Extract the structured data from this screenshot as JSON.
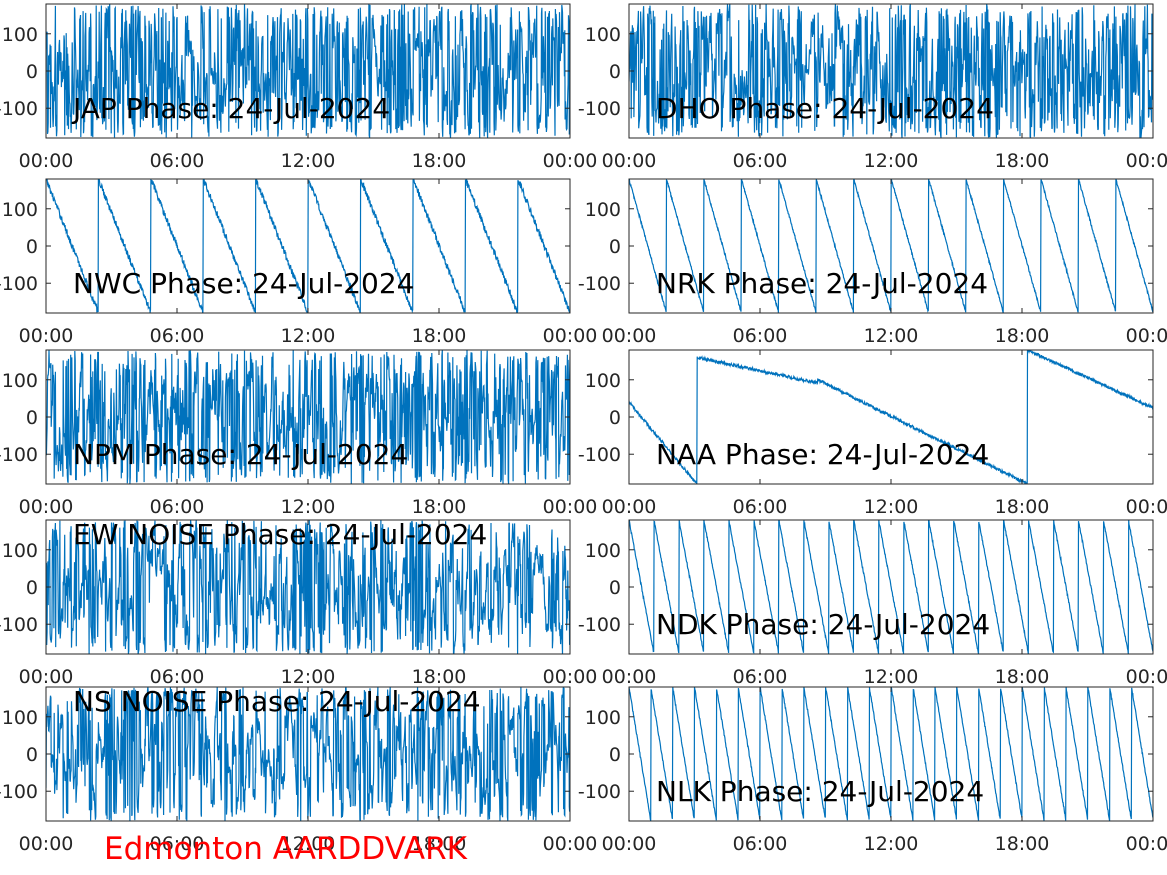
{
  "figure": {
    "footer": "Edmonton AARDDVARK",
    "footer_color": "#ff0000",
    "line_color": "#0072bd"
  },
  "chart_data": [
    {
      "type": "line",
      "title": "JAP Phase: 24-Jul-2024",
      "xlim": [
        "00:00",
        "24:00"
      ],
      "xticks": [
        "00:00",
        "06:00",
        "12:00",
        "18:00",
        "00:00"
      ],
      "ylim": [
        -180,
        180
      ],
      "yticks": [
        100,
        0,
        -100
      ],
      "ytick_labels": [
        "100",
        "0",
        "-100"
      ],
      "pattern": "noise",
      "noise_level": 0.95,
      "wraps": 0
    },
    {
      "type": "line",
      "title": "DHO Phase: 24-Jul-2024",
      "xlim": [
        "00:00",
        "24:00"
      ],
      "xticks": [
        "00:00",
        "06:00",
        "12:00",
        "18:00",
        "00:00"
      ],
      "ylim": [
        -180,
        180
      ],
      "yticks": [
        100,
        0,
        -100
      ],
      "ytick_labels": [
        "100",
        "0",
        "-100"
      ],
      "pattern": "noise",
      "noise_level": 0.95,
      "wraps": 0
    },
    {
      "type": "line",
      "title": "NWC Phase: 24-Jul-2024",
      "xlim": [
        "00:00",
        "24:00"
      ],
      "xticks": [
        "00:00",
        "06:00",
        "12:00",
        "18:00",
        "00:00"
      ],
      "ylim": [
        -180,
        180
      ],
      "yticks": [
        100,
        0,
        -100
      ],
      "ytick_labels": [
        "100",
        "0",
        "-100"
      ],
      "pattern": "sawtooth",
      "noise_level": 0.05,
      "wraps": 10
    },
    {
      "type": "line",
      "title": "NRK Phase: 24-Jul-2024",
      "xlim": [
        "00:00",
        "24:00"
      ],
      "xticks": [
        "00:00",
        "06:00",
        "12:00",
        "18:00",
        "00:00"
      ],
      "ylim": [
        -180,
        180
      ],
      "yticks": [
        100,
        0,
        -100
      ],
      "ytick_labels": [
        "100",
        "0",
        "-100"
      ],
      "pattern": "sawtooth",
      "noise_level": 0.02,
      "wraps": 14
    },
    {
      "type": "line",
      "title": "NPM Phase: 24-Jul-2024",
      "xlim": [
        "00:00",
        "24:00"
      ],
      "xticks": [
        "00:00",
        "06:00",
        "12:00",
        "18:00",
        "00:00"
      ],
      "ylim": [
        -180,
        180
      ],
      "yticks": [
        100,
        0,
        -100
      ],
      "ytick_labels": [
        "100",
        "0",
        "-100"
      ],
      "pattern": "noise",
      "noise_level": 0.85,
      "wraps": 0
    },
    {
      "type": "line",
      "title": "NAA Phase: 24-Jul-2024",
      "xlim": [
        "00:00",
        "24:00"
      ],
      "xticks": [
        "00:00",
        "06:00",
        "12:00",
        "18:00",
        "00:00"
      ],
      "ylim": [
        -180,
        180
      ],
      "yticks": [
        100,
        0,
        -100
      ],
      "ytick_labels": [
        "100",
        "0",
        "-100"
      ],
      "pattern": "drift",
      "noise_level": 0.02,
      "wraps": 4
    },
    {
      "type": "line",
      "title": "EW NOISE Phase: 24-Jul-2024",
      "xlim": [
        "00:00",
        "24:00"
      ],
      "xticks": [
        "00:00",
        "06:00",
        "12:00",
        "18:00",
        "00:00"
      ],
      "ylim": [
        -180,
        180
      ],
      "yticks": [
        100,
        0,
        -100
      ],
      "ytick_labels": [
        "100",
        "0",
        "-100"
      ],
      "pattern": "noise",
      "noise_level": 0.7,
      "wraps": 0
    },
    {
      "type": "line",
      "title": "NDK Phase: 24-Jul-2024",
      "xlim": [
        "00:00",
        "24:00"
      ],
      "xticks": [
        "00:00",
        "06:00",
        "12:00",
        "18:00",
        "00:00"
      ],
      "ylim": [
        -180,
        180
      ],
      "yticks": [
        100,
        0,
        -100
      ],
      "ytick_labels": [
        "100",
        "0",
        "-100"
      ],
      "pattern": "sawtooth",
      "noise_level": 0.02,
      "wraps": 21
    },
    {
      "type": "line",
      "title": "NS NOISE Phase: 24-Jul-2024",
      "xlim": [
        "00:00",
        "24:00"
      ],
      "xticks": [
        "00:00",
        "06:00",
        "12:00",
        "18:00",
        "00:00"
      ],
      "ylim": [
        -180,
        180
      ],
      "yticks": [
        100,
        0,
        -100
      ],
      "ytick_labels": [
        "100",
        "0",
        "-100"
      ],
      "pattern": "noise",
      "noise_level": 0.65,
      "wraps": 0
    },
    {
      "type": "line",
      "title": "NLK Phase: 24-Jul-2024",
      "xlim": [
        "00:00",
        "24:00"
      ],
      "xticks": [
        "00:00",
        "06:00",
        "12:00",
        "18:00",
        "00:00"
      ],
      "ylim": [
        -180,
        180
      ],
      "yticks": [
        100,
        0,
        -100
      ],
      "ytick_labels": [
        "100",
        "0",
        "-100"
      ],
      "pattern": "sawtooth",
      "noise_level": 0.02,
      "wraps": 24
    }
  ]
}
